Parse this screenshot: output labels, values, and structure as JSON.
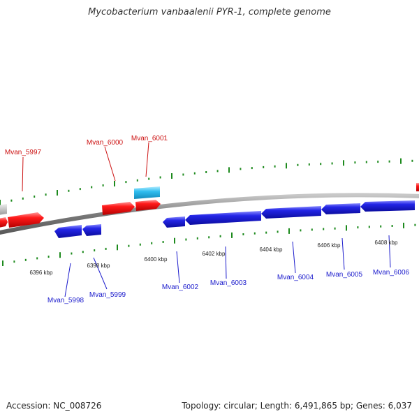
{
  "title": "Mycobacterium vanbaalenii PYR-1, complete genome",
  "footer": {
    "accession": "Accession: NC_008726",
    "stats": "Topology: circular; Length: 6,491,865 bp; Genes: 6,037"
  },
  "colors": {
    "forward": "#ee1111",
    "reverse": "#1f22dd",
    "rna": "#29b6e6",
    "other": "#bdbdbd",
    "tick": "#1d8a1d",
    "backbone": "#8a8a8a",
    "label_forward": "#cc1111",
    "label_reverse": "#1a1acc"
  },
  "scale_labels": [
    "6396 kbp",
    "6398 kbp",
    "6400 kbp",
    "6402 kbp",
    "6404 kbp",
    "6406 kbp",
    "6408 kbp"
  ],
  "gene_labels_forward": [
    "Mvan_5997",
    "Mvan_6000",
    "Mvan_6001"
  ],
  "gene_labels_reverse": [
    "Mvan_5998",
    "Mvan_5999",
    "Mvan_6002",
    "Mvan_6003",
    "Mvan_6004",
    "Mvan_6005",
    "Mvan_6006"
  ]
}
